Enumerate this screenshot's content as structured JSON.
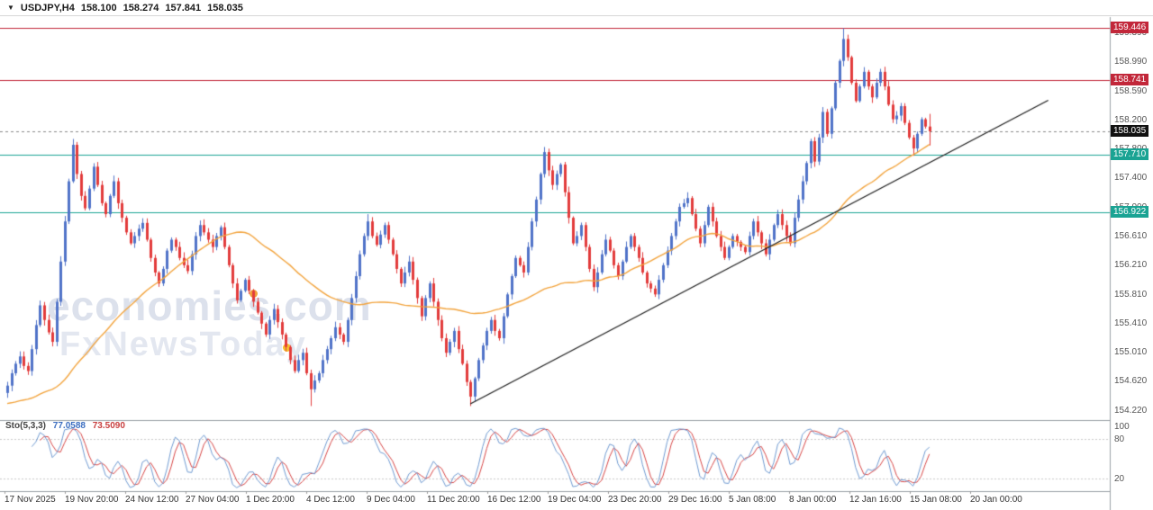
{
  "topbar": {
    "dropdown_icon": "▼",
    "symbol": "USDJPY,H4",
    "open": "158.100",
    "high": "158.274",
    "low": "157.841",
    "close": "158.035"
  },
  "watermark": {
    "line1": "economies.com",
    "line2": "FxNewsToday"
  },
  "colors": {
    "bull": "#5073c8",
    "bear": "#e23b3b",
    "ma": "#f2a33c",
    "resistance": "#c2273a",
    "support": "#1aa393",
    "trendline": "#1a1a1a",
    "sto_k": "#6f9ad1",
    "sto_d": "#d64545",
    "axis_text": "#555555",
    "badge_current": "#111111"
  },
  "axis": {
    "price_labels": [
      "159.390",
      "158.990",
      "158.590",
      "158.200",
      "157.800",
      "157.400",
      "157.000",
      "156.610",
      "156.210",
      "155.810",
      "155.410",
      "155.010",
      "154.620",
      "154.220"
    ]
  },
  "levels": [
    {
      "label": "159.446",
      "price": 159.446,
      "kind": "resistance"
    },
    {
      "label": "158.741",
      "price": 158.741,
      "kind": "resistance"
    },
    {
      "label": "157.710",
      "price": 157.71,
      "kind": "support"
    },
    {
      "label": "156.922",
      "price": 156.922,
      "kind": "support"
    }
  ],
  "current_price": {
    "label": "158.035",
    "price": 158.035
  },
  "indicator": {
    "name": "Sto(5,3,3)",
    "k_value": "77.0588",
    "d_value": "73.5090",
    "sto_axis_labels": [
      "100",
      "80",
      "20"
    ],
    "levels": [
      80,
      20
    ]
  },
  "trendline": {
    "from_index": 113,
    "from_price": 154.3,
    "to_index": 254,
    "to_price": 158.46
  },
  "ma": {
    "period": 45,
    "seed": 154.3
  },
  "chart_data": {
    "type": "candlestick",
    "symbol": "USDJPY",
    "timeframe": "H4",
    "title": "USDJPY H4 candlestick chart with Stochastic(5,3,3)",
    "ylim": [
      154.14,
      159.6
    ],
    "ohlc_last": [
      158.1,
      158.274,
      157.841,
      158.035
    ],
    "first_open": 154.45,
    "closes": [
      154.55,
      154.72,
      154.85,
      154.95,
      154.82,
      154.75,
      155.05,
      155.38,
      155.65,
      155.45,
      155.28,
      155.15,
      155.7,
      156.25,
      156.8,
      157.35,
      157.85,
      157.45,
      157.15,
      156.98,
      157.25,
      157.55,
      157.3,
      157.05,
      156.9,
      157.15,
      157.35,
      157.05,
      156.85,
      156.65,
      156.5,
      156.6,
      156.7,
      156.78,
      156.55,
      156.3,
      156.1,
      155.95,
      156.15,
      156.4,
      156.55,
      156.45,
      156.3,
      156.2,
      156.12,
      156.35,
      156.6,
      156.75,
      156.65,
      156.55,
      156.45,
      156.6,
      156.72,
      156.45,
      156.2,
      155.95,
      155.72,
      155.85,
      156.0,
      155.85,
      155.7,
      155.55,
      155.4,
      155.25,
      155.45,
      155.6,
      155.42,
      155.25,
      155.08,
      154.9,
      154.75,
      154.9,
      155.0,
      154.72,
      154.5,
      154.62,
      154.72,
      154.9,
      155.05,
      155.2,
      155.35,
      155.25,
      155.15,
      155.45,
      155.75,
      156.05,
      156.35,
      156.6,
      156.8,
      156.6,
      156.48,
      156.62,
      156.75,
      156.55,
      156.35,
      156.15,
      155.95,
      156.1,
      156.25,
      156.0,
      155.75,
      155.5,
      155.75,
      155.95,
      155.7,
      155.45,
      155.2,
      155.0,
      155.15,
      155.3,
      155.05,
      154.85,
      154.6,
      154.4,
      154.65,
      154.9,
      155.1,
      155.3,
      155.45,
      155.3,
      155.2,
      155.5,
      155.8,
      156.05,
      156.3,
      156.2,
      156.1,
      156.45,
      156.8,
      157.1,
      157.45,
      157.75,
      157.5,
      157.3,
      157.45,
      157.58,
      157.2,
      156.85,
      156.5,
      156.6,
      156.75,
      156.45,
      156.15,
      155.9,
      156.1,
      156.35,
      156.55,
      156.4,
      156.2,
      156.05,
      156.25,
      156.45,
      156.6,
      156.45,
      156.3,
      156.1,
      155.95,
      155.88,
      155.8,
      156.0,
      156.2,
      156.4,
      156.6,
      156.8,
      157.0,
      157.05,
      157.12,
      156.9,
      156.7,
      156.5,
      156.75,
      157.0,
      156.8,
      156.6,
      156.45,
      156.3,
      156.45,
      156.6,
      156.52,
      156.45,
      156.38,
      156.6,
      156.8,
      156.65,
      156.5,
      156.35,
      156.55,
      156.75,
      156.9,
      156.75,
      156.6,
      156.5,
      156.85,
      157.1,
      157.35,
      157.6,
      157.9,
      157.62,
      157.95,
      158.3,
      158.0,
      158.35,
      158.7,
      159.0,
      159.3,
      159.05,
      158.7,
      158.45,
      158.65,
      158.85,
      158.65,
      158.5,
      158.7,
      158.85,
      158.65,
      158.4,
      158.2,
      158.25,
      158.38,
      158.15,
      157.95,
      157.8,
      158.0,
      158.2,
      158.1,
      158.035
    ],
    "wick_overrides": {
      "16": {
        "h": 157.93
      },
      "74": {
        "l": 154.27
      },
      "88": {
        "h": 156.9
      },
      "113": {
        "l": 154.27
      },
      "131": {
        "h": 157.82
      },
      "166": {
        "h": 157.2
      },
      "204": {
        "h": 159.446
      },
      "221": {
        "l": 157.7
      }
    },
    "x_axis_labels": [
      "17 Nov 2025",
      "19 Nov 20:00",
      "24 Nov 12:00",
      "27 Nov 04:00",
      "1 Dec 20:00",
      "4 Dec 12:00",
      "9 Dec 04:00",
      "11 Dec 20:00",
      "16 Dec 12:00",
      "19 Dec 04:00",
      "23 Dec 20:00",
      "29 Dec 16:00",
      "5 Jan 08:00",
      "8 Jan 00:00",
      "12 Jan 16:00",
      "15 Jan 08:00",
      "20 Jan 00:00"
    ]
  }
}
